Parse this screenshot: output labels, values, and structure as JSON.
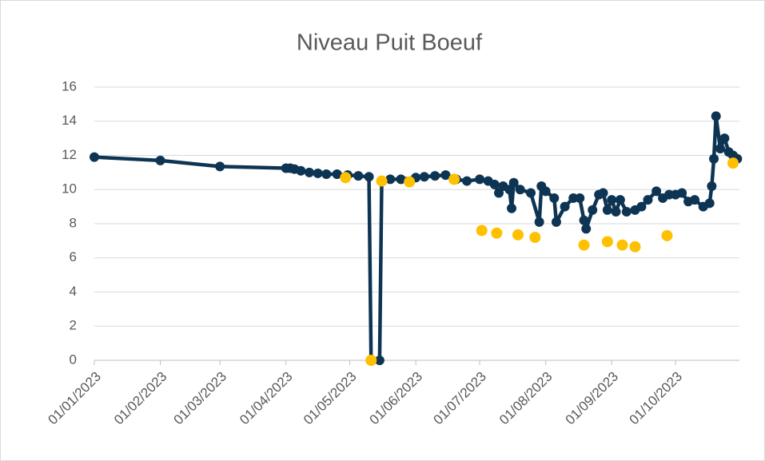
{
  "chart_data": {
    "type": "line",
    "title": "Niveau Puit Boeuf",
    "xlim": [
      "2023-01-01",
      "2023-10-31"
    ],
    "xticks": [
      {
        "value": "2023-01-01",
        "label": "01/01/2023"
      },
      {
        "value": "2023-02-01",
        "label": "01/02/2023"
      },
      {
        "value": "2023-03-01",
        "label": "01/03/2023"
      },
      {
        "value": "2023-04-01",
        "label": "01/04/2023"
      },
      {
        "value": "2023-05-01",
        "label": "01/05/2023"
      },
      {
        "value": "2023-06-01",
        "label": "01/06/2023"
      },
      {
        "value": "2023-07-01",
        "label": "01/07/2023"
      },
      {
        "value": "2023-08-01",
        "label": "01/08/2023"
      },
      {
        "value": "2023-09-01",
        "label": "01/09/2023"
      },
      {
        "value": "2023-10-01",
        "label": "01/10/2023"
      }
    ],
    "ylim": [
      0,
      16
    ],
    "yticks": [
      0,
      2,
      4,
      6,
      8,
      10,
      12,
      14,
      16
    ],
    "grid": true,
    "series": [
      {
        "type": "line",
        "color": "#0d3453",
        "x": [
          "2023-01-01",
          "2023-02-01",
          "2023-03-01",
          "2023-04-01",
          "2023-04-03",
          "2023-04-05",
          "2023-04-08",
          "2023-04-12",
          "2023-04-16",
          "2023-04-20",
          "2023-04-25",
          "2023-04-30",
          "2023-05-05",
          "2023-05-10",
          "2023-05-11",
          "2023-05-15",
          "2023-05-16",
          "2023-05-20",
          "2023-05-25",
          "2023-06-01",
          "2023-06-05",
          "2023-06-10",
          "2023-06-15",
          "2023-06-20",
          "2023-06-25",
          "2023-07-01",
          "2023-07-05",
          "2023-07-08",
          "2023-07-10",
          "2023-07-12",
          "2023-07-15",
          "2023-07-16",
          "2023-07-17",
          "2023-07-20",
          "2023-07-25",
          "2023-07-29",
          "2023-07-30",
          "2023-08-01",
          "2023-08-05",
          "2023-08-06",
          "2023-08-10",
          "2023-08-14",
          "2023-08-17",
          "2023-08-19",
          "2023-08-20",
          "2023-08-23",
          "2023-08-26",
          "2023-08-28",
          "2023-08-30",
          "2023-09-01",
          "2023-09-03",
          "2023-09-05",
          "2023-09-08",
          "2023-09-12",
          "2023-09-15",
          "2023-09-18",
          "2023-09-22",
          "2023-09-25",
          "2023-09-28",
          "2023-10-01",
          "2023-10-04",
          "2023-10-07",
          "2023-10-10",
          "2023-10-14",
          "2023-10-17",
          "2023-10-18",
          "2023-10-19",
          "2023-10-20",
          "2023-10-22",
          "2023-10-24",
          "2023-10-26",
          "2023-10-28",
          "2023-10-30"
        ],
        "values": [
          11.9,
          11.7,
          11.35,
          11.25,
          11.25,
          11.2,
          11.1,
          11.0,
          10.95,
          10.9,
          10.9,
          10.85,
          10.8,
          10.75,
          0,
          0,
          10.5,
          10.6,
          10.6,
          10.7,
          10.75,
          10.8,
          10.85,
          10.6,
          10.5,
          10.6,
          10.5,
          10.3,
          9.8,
          10.2,
          10.0,
          8.9,
          10.4,
          10.0,
          9.8,
          8.1,
          10.2,
          9.9,
          9.5,
          8.1,
          9.0,
          9.5,
          9.5,
          8.2,
          7.7,
          8.8,
          9.7,
          9.8,
          8.8,
          9.4,
          8.7,
          9.4,
          8.7,
          8.8,
          9.0,
          9.4,
          9.9,
          9.5,
          9.7,
          9.7,
          9.8,
          9.3,
          9.4,
          9.0,
          9.2,
          10.2,
          11.8,
          14.3,
          12.4,
          13.0,
          12.2,
          12.0,
          11.8
        ]
      },
      {
        "type": "scatter",
        "color": "#ffc000",
        "x": [
          "2023-04-29",
          "2023-05-11",
          "2023-05-16",
          "2023-05-29",
          "2023-06-19",
          "2023-07-02",
          "2023-07-09",
          "2023-07-19",
          "2023-07-27",
          "2023-08-19",
          "2023-08-30",
          "2023-09-06",
          "2023-09-12",
          "2023-09-27",
          "2023-10-28"
        ],
        "values": [
          10.7,
          0,
          10.5,
          10.45,
          10.6,
          7.6,
          7.45,
          7.35,
          7.2,
          6.75,
          6.95,
          6.75,
          6.65,
          7.3,
          11.55
        ]
      }
    ]
  }
}
